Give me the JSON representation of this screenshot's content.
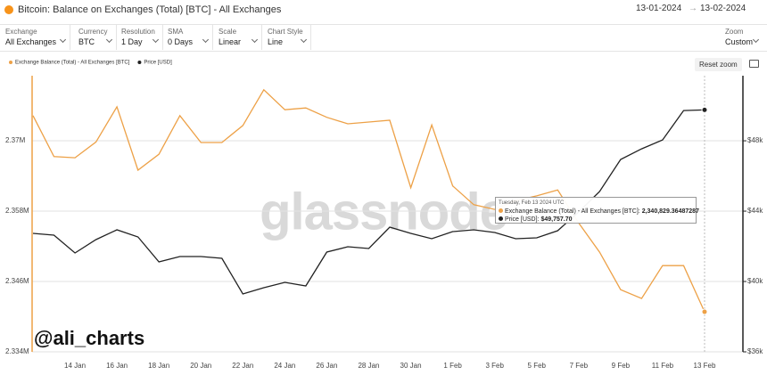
{
  "header": {
    "title": "Bitcoin: Balance on Exchanges (Total) [BTC] - All Exchanges",
    "date_from": "13-01-2024",
    "date_to": "13-02-2024"
  },
  "controls": [
    {
      "label": "Exchange",
      "value": "All Exchanges"
    },
    {
      "label": "Currency",
      "value": "BTC"
    },
    {
      "label": "Resolution",
      "value": "1 Day"
    },
    {
      "label": "SMA",
      "value": "0 Days"
    },
    {
      "label": "Scale",
      "value": "Linear"
    },
    {
      "label": "Chart Style",
      "value": "Line"
    },
    {
      "label": "Zoom",
      "value": "Custom"
    }
  ],
  "reset_zoom": "Reset zoom",
  "watermark": "glassnode",
  "credit": "@ali_charts",
  "chart_data": {
    "type": "line",
    "categories": [
      null,
      null,
      "14 Jan",
      null,
      "16 Jan",
      null,
      "18 Jan",
      null,
      "20 Jan",
      null,
      "22 Jan",
      null,
      "24 Jan",
      null,
      "26 Jan",
      null,
      "28 Jan",
      null,
      "30 Jan",
      null,
      "1 Feb",
      null,
      "3 Feb",
      null,
      "5 Feb",
      null,
      "7 Feb",
      null,
      "9 Feb",
      null,
      "11 Feb",
      null,
      "13 Feb"
    ],
    "series": [
      {
        "name": "Exchange Balance (Total) - All Exchanges [BTC]",
        "color": "#eda147",
        "values": [
          2374300,
          2367300,
          2367100,
          2369800,
          2375800,
          2365000,
          2367700,
          2374300,
          2369700,
          2369700,
          2372600,
          2378700,
          2375300,
          2375600,
          2374000,
          2372900,
          2373200,
          2373500,
          2362000,
          2372700,
          2362300,
          2359100,
          2358300,
          2359800,
          2360600,
          2361600,
          2356000,
          2351000,
          2344600,
          2343100,
          2348700,
          2348700,
          2340829.36487287
        ]
      },
      {
        "name": "Price [USD]",
        "color": "#222222",
        "axis": "y2",
        "values": [
          42734,
          42633,
          41620,
          42380,
          42937,
          42531,
          41114,
          41418,
          41418,
          41316,
          39291,
          39645,
          39949,
          39747,
          41671,
          41975,
          41873,
          43089,
          42734,
          42430,
          42835,
          42937,
          42785,
          42430,
          42481,
          42886,
          43949,
          45114,
          46937,
          47544,
          48050,
          49721,
          49757.7
        ]
      }
    ],
    "ylim": [
      2334000,
      2381100
    ],
    "yticks": [
      {
        "value": 2334000,
        "label": "2.334M"
      },
      {
        "value": 2346000,
        "label": "2.346M"
      },
      {
        "value": 2358000,
        "label": "2.358M"
      },
      {
        "value": 2370000,
        "label": "2.37M"
      }
    ],
    "y2lim": [
      36000,
      51700
    ],
    "y2ticks": [
      {
        "value": 36000,
        "label": "$36k"
      },
      {
        "value": 40000,
        "label": "$40k"
      },
      {
        "value": 44000,
        "label": "$44k"
      },
      {
        "value": 48000,
        "label": "$48k"
      }
    ],
    "grid": true,
    "legend": "top-left",
    "tooltip": {
      "date": "Tuesday, Feb 13 2024 UTC",
      "items": [
        {
          "label": "Exchange Balance (Total) - All Exchanges [BTC]:",
          "value": "2,340,829.36487287"
        },
        {
          "label": "Price [USD]:",
          "value": "$49,757.70"
        }
      ]
    }
  }
}
